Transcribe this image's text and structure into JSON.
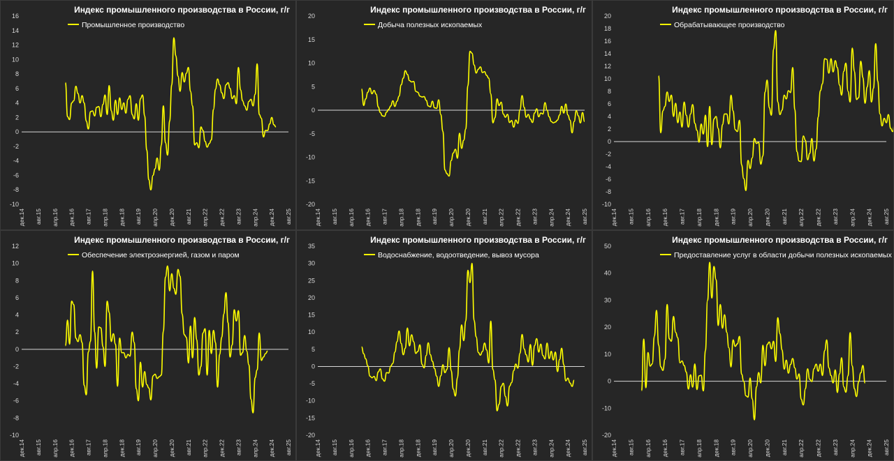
{
  "colors": {
    "background": "#262626",
    "line": "#ffff00",
    "zero_line": "#d9d9d9",
    "text": "#ffffff"
  },
  "x_ticks": [
    "дек.14",
    "авг.15",
    "апр.16",
    "дек.16",
    "авг.17",
    "апр.18",
    "дек.18",
    "авг.19",
    "апр.20",
    "дек.20",
    "авг.21",
    "апр.22",
    "дек.22",
    "авг.23",
    "апр.24",
    "дек.24",
    "авг.25"
  ],
  "x_ticks_alt": [
    "дек.14",
    "авг.15",
    "апр.16",
    "дек.16",
    "авг.17",
    "апр.18",
    "дек.18",
    "авг.19",
    "апр.20",
    "дек.20",
    "авг.21",
    "апр.22",
    "дек.22",
    "авг.23",
    "апр.24",
    "дек.24",
    "авг.25"
  ],
  "chart_data": [
    {
      "type": "line",
      "title": "Индекс промышленного производства в России, г/г",
      "legend": "Промышленное производство",
      "ylim": [
        -10,
        16
      ],
      "ystep": 2,
      "series": [
        {
          "name": "Промышленное производство",
          "start": "2016-09",
          "values": [
            6.8,
            2.1,
            1.7,
            4.0,
            4.3,
            6.3,
            5.3,
            4.0,
            5.0,
            4.0,
            1.5,
            0.4,
            2.8,
            2.9,
            2.2,
            3.4,
            3.5,
            2.1,
            3.8,
            5.1,
            2.4,
            6.4,
            2.9,
            1.6,
            4.4,
            2.4,
            4.7,
            3.1,
            4.0,
            2.6,
            4.5,
            5.0,
            2.4,
            1.8,
            3.9,
            1.6,
            4.6,
            5.1,
            2.2,
            -2.5,
            -6.6,
            -8.0,
            -6.0,
            -5.1,
            -3.6,
            -5.3,
            -1.8,
            3.6,
            -1.5,
            -3.2,
            1.5,
            6.5,
            13.0,
            10.5,
            7.7,
            5.6,
            8.2,
            6.9,
            8.1,
            8.9,
            5.6,
            3.6,
            -1.8,
            -1.5,
            -2.2,
            0.7,
            0.2,
            -1.3,
            -2.1,
            -1.6,
            -1.1,
            3.1,
            5.9,
            7.3,
            6.5,
            5.4,
            4.6,
            6.5,
            6.8,
            6.0,
            4.6,
            5.0,
            3.9,
            8.9,
            5.8,
            4.3,
            3.6,
            3.0,
            4.2,
            4.5,
            3.6,
            5.2,
            9.4,
            2.4,
            1.9,
            -0.7,
            0.2,
            0.2,
            1.1,
            2.0,
            1.0,
            0.7
          ]
        }
      ]
    },
    {
      "type": "line",
      "title": "Индекс промышленного производства в России, г/г",
      "legend": "Добыча полезных ископаемых",
      "ylim": [
        -20,
        20
      ],
      "ystep": 5,
      "series": [
        {
          "name": "Добыча полезных ископаемых",
          "start": "2016-09",
          "values": [
            4.5,
            1.0,
            2.4,
            3.8,
            4.7,
            3.5,
            4.2,
            3.4,
            0.7,
            -0.5,
            -1.2,
            -1.3,
            -0.4,
            0.2,
            0.9,
            2.0,
            0.8,
            1.9,
            3.0,
            5.4,
            6.8,
            8.4,
            7.6,
            6.3,
            6.0,
            6.1,
            4.0,
            3.8,
            3.0,
            2.8,
            2.9,
            2.1,
            0.9,
            0.7,
            1.9,
            0.5,
            0.4,
            2.2,
            -0.9,
            -4.5,
            -12.7,
            -13.5,
            -14.0,
            -10.7,
            -9.1,
            -8.3,
            -10.2,
            -4.9,
            -8.1,
            -6.4,
            -4.0,
            5.2,
            12.5,
            12.1,
            9.6,
            7.9,
            8.7,
            9.2,
            8.0,
            8.2,
            7.4,
            6.8,
            3.5,
            -2.7,
            -1.6,
            2.4,
            1.0,
            1.7,
            -0.8,
            -1.5,
            -0.9,
            -2.6,
            -2.2,
            -3.6,
            -2.1,
            -2.8,
            0.1,
            3.1,
            0.6,
            -1.5,
            -0.9,
            -1.9,
            -2.6,
            -0.6,
            0.3,
            -1.4,
            -0.6,
            -0.8,
            1.6,
            0.0,
            -1.4,
            -2.4,
            -2.7,
            -2.5,
            -2.1,
            -1.0,
            0.8,
            -0.6,
            1.3,
            -1.0,
            -2.1,
            -4.8,
            -2.4,
            -0.1,
            -1.2,
            -2.7,
            -0.5,
            -2.4
          ]
        }
      ]
    },
    {
      "type": "line",
      "title": "Индекс промышленного производства в России, г/г",
      "legend": "Обрабатывающее производство",
      "ylim": [
        -10,
        20
      ],
      "ystep": 2,
      "series": [
        {
          "name": "Обрабатывающее производство",
          "start": "2016-09",
          "values": [
            10.5,
            1.4,
            4.9,
            5.6,
            7.9,
            6.4,
            7.4,
            4.0,
            6.1,
            3.0,
            4.7,
            2.3,
            6.3,
            4.2,
            2.3,
            4.4,
            5.9,
            2.9,
            1.8,
            -0.1,
            2.8,
            1.2,
            4.2,
            -0.8,
            5.6,
            -0.5,
            3.6,
            4.0,
            2.1,
            -1.0,
            2.7,
            4.4,
            4.4,
            2.8,
            7.4,
            4.9,
            1.9,
            1.6,
            3.4,
            -3.7,
            -5.9,
            -7.8,
            -3.0,
            -4.3,
            -2.6,
            0.5,
            -0.3,
            -0.1,
            -3.6,
            -2.3,
            7.9,
            9.8,
            5.4,
            4.2,
            14.7,
            17.7,
            6.3,
            4.3,
            5.0,
            7.4,
            6.8,
            8.1,
            7.8,
            11.8,
            5.1,
            -1.6,
            -3.1,
            -3.2,
            0.9,
            0.2,
            -2.9,
            -1.9,
            0.5,
            -3.1,
            -1.2,
            3.9,
            8.1,
            9.2,
            13.2,
            13.1,
            10.9,
            13.2,
            11.1,
            12.9,
            11.8,
            9.0,
            7.4,
            11.2,
            12.5,
            8.0,
            6.3,
            14.9,
            11.2,
            6.7,
            7.0,
            12.8,
            10.2,
            6.1,
            8.7,
            11.3,
            6.3,
            8.5,
            15.6,
            9.6,
            4.4,
            2.5,
            3.7,
            3.0,
            4.3,
            2.1,
            1.6,
            3.1
          ]
        }
      ]
    },
    {
      "type": "line",
      "title": "Индекс промышленного производства в России, г/г",
      "legend": "Обеспечение электроэнергией, газом и паром",
      "ylim": [
        -10,
        12
      ],
      "ystep": 2,
      "series": [
        {
          "name": "Обеспечение электроэнергией, газом и паром",
          "start": "2016-09",
          "values": [
            0.4,
            3.4,
            0.6,
            5.6,
            5.2,
            1.3,
            0.9,
            1.7,
            0.8,
            -4.2,
            -5.3,
            -0.3,
            0.9,
            9.1,
            2.0,
            -2.2,
            2.6,
            2.5,
            0.3,
            -2.0,
            5.6,
            4.3,
            0.9,
            1.8,
            0.6,
            -4.3,
            1.3,
            -0.4,
            -0.4,
            -1.0,
            -0.6,
            -0.8,
            2.0,
            0.8,
            -4.6,
            -6.0,
            -1.5,
            -4.4,
            -2.6,
            -4.1,
            -4.5,
            -5.9,
            -3.1,
            -2.9,
            -3.4,
            -3.2,
            -3.0,
            2.1,
            8.4,
            9.7,
            6.8,
            8.8,
            7.1,
            6.4,
            9.3,
            8.5,
            4.1,
            1.7,
            1.4,
            -1.6,
            2.7,
            -1.0,
            3.7,
            1.1,
            -3.0,
            -2.0,
            1.9,
            2.4,
            -3.0,
            2.2,
            -0.5,
            2.2,
            0.8,
            -4.4,
            -0.6,
            1.4,
            4.1,
            6.6,
            3.1,
            -0.9,
            0.5,
            4.6,
            3.3,
            4.5,
            -0.7,
            -0.4,
            1.6,
            -0.2,
            -1.8,
            -5.8,
            -7.4,
            -3.3,
            -2.4,
            1.9,
            -1.3,
            -0.9,
            -0.5,
            -0.2
          ]
        }
      ]
    },
    {
      "type": "line",
      "title": "Индекс промышленного производства в России, г/г",
      "legend": "Водоснабжение, водоотведение, вывоз мусора",
      "ylim": [
        -20,
        35
      ],
      "ystep": 5,
      "series": [
        {
          "name": "Водоснабжение, водоотведение, вывоз мусора",
          "start": "2016-09",
          "values": [
            5.7,
            3.7,
            2.2,
            0.2,
            -2.8,
            -3.3,
            -2.9,
            -4.1,
            -1.6,
            -0.7,
            -3.6,
            -4.3,
            -1.8,
            -1.9,
            0.1,
            0.9,
            4.2,
            7.2,
            10.3,
            6.7,
            3.4,
            5.3,
            11.2,
            6.0,
            9.2,
            7.2,
            3.8,
            4.4,
            6.3,
            0.6,
            -0.4,
            3.2,
            6.9,
            3.4,
            1.5,
            -0.6,
            -2.8,
            -5.8,
            -2.7,
            0.5,
            -1.8,
            -0.8,
            5.5,
            -1.2,
            -6.6,
            -8.6,
            -3.3,
            5.0,
            12.1,
            7.5,
            13.3,
            28.0,
            24.4,
            30.0,
            13.4,
            8.6,
            4.1,
            3.3,
            4.4,
            6.8,
            4.8,
            1.0,
            13.2,
            -0.9,
            -3.9,
            -12.9,
            -11.0,
            -5.8,
            -4.9,
            -8.7,
            -11.5,
            -5.7,
            -4.7,
            -1.2,
            0.7,
            -0.5,
            3.8,
            9.3,
            5.1,
            3.4,
            1.3,
            6.4,
            0.3,
            6.1,
            8.1,
            4.2,
            6.5,
            3.2,
            2.2,
            6.8,
            2.3,
            4.4,
            1.9,
            4.2,
            -1.5,
            2.0,
            5.3,
            0.5,
            -4.2,
            -3.4,
            -4.8,
            -5.8,
            -4.0
          ]
        }
      ]
    },
    {
      "type": "line",
      "title": "Индекс промышленного производства в России, г/г",
      "legend": "Предоставление услуг в области добычи полезных ископаемых",
      "ylim": [
        -20,
        50
      ],
      "ystep": 10,
      "series": [
        {
          "name": "Предоставление услуг в области добычи полезных ископаемых",
          "start": "2016-01",
          "values": [
            -3.5,
            15.6,
            -2.4,
            10.6,
            5.6,
            6.4,
            16.6,
            26.2,
            13.4,
            5.3,
            4.0,
            8.1,
            28.4,
            15.7,
            14.8,
            24.0,
            18.1,
            16.1,
            6.8,
            7.5,
            5.8,
            3.4,
            -2.9,
            2.4,
            -2.2,
            6.4,
            -3.1,
            2.0,
            2.2,
            -3.6,
            11.3,
            29.9,
            44.0,
            30.8,
            42.5,
            37.6,
            20.6,
            28.4,
            19.6,
            24.6,
            18.1,
            12.4,
            5.3,
            15.3,
            12.9,
            13.8,
            16.6,
            2.6,
            -0.1,
            -5.4,
            -5.9,
            1.2,
            -6.6,
            -14.3,
            -2.1,
            3.2,
            -0.6,
            13.3,
            5.7,
            13.6,
            14.5,
            12.0,
            14.8,
            7.3,
            23.5,
            17.6,
            11.6,
            4.5,
            7.8,
            3.0,
            6.2,
            8.4,
            4.9,
            0.8,
            2.7,
            -6.7,
            -8.8,
            -2.8,
            4.6,
            0.7,
            -0.1,
            4.6,
            6.3,
            3.7,
            6.3,
            2.1,
            11.3,
            15.3,
            4.9,
            2.1,
            -0.6,
            4.2,
            -4.2,
            2.7,
            8.7,
            -2.1,
            -4.1,
            2.0,
            18.0,
            5.7,
            -2.8,
            -5.7,
            -0.2,
            3.1,
            5.8,
            -0.7
          ]
        }
      ]
    }
  ]
}
